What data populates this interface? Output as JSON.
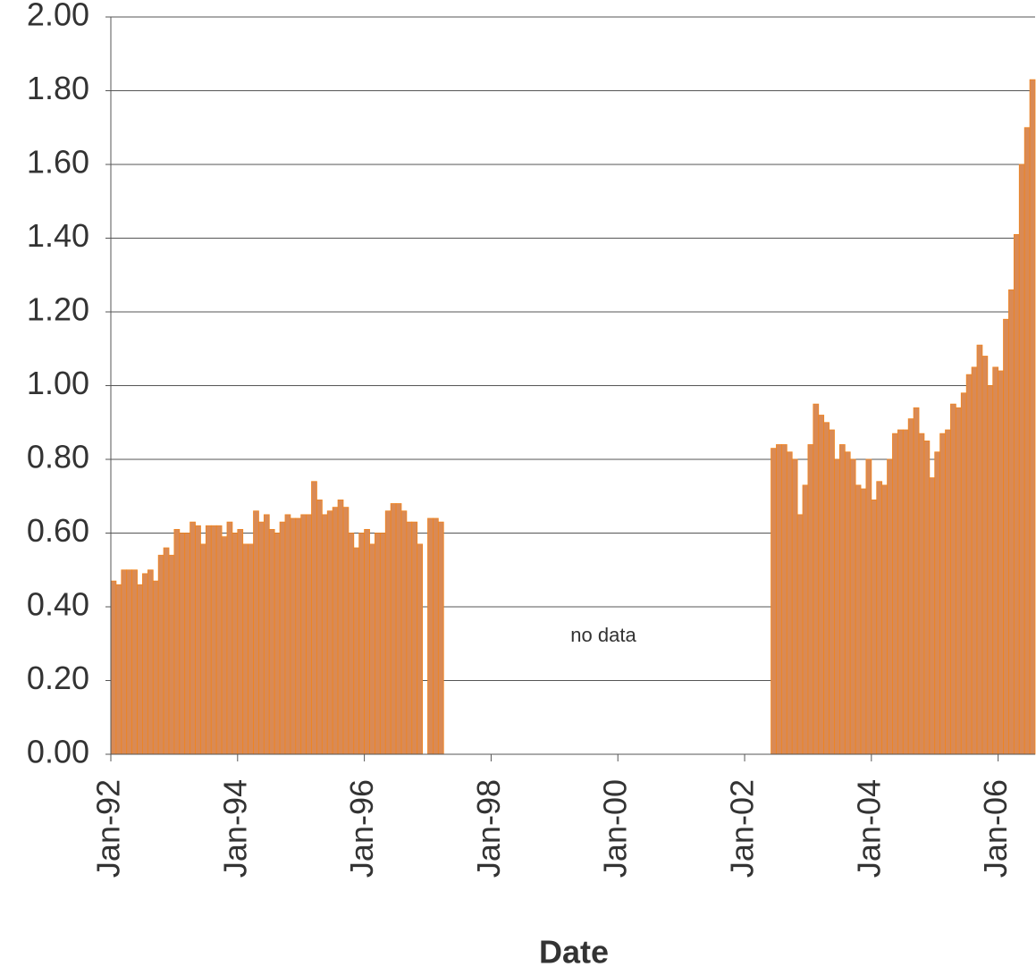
{
  "chart_data": {
    "type": "bar",
    "x_label": "Date",
    "annotation": "no data",
    "color": "#d98a55",
    "edge_color": "#f0841e",
    "grid": true,
    "categories": [
      "Jan-92",
      null,
      null,
      null,
      null,
      null,
      null,
      null,
      null,
      null,
      null,
      null,
      null,
      null,
      null,
      null,
      null,
      null,
      null,
      null,
      null,
      null,
      null,
      null,
      "Jan-94",
      null,
      null,
      null,
      null,
      null,
      null,
      null,
      null,
      null,
      null,
      null,
      null,
      null,
      null,
      null,
      null,
      null,
      null,
      null,
      null,
      null,
      null,
      null,
      "Jan-96",
      null,
      null,
      null,
      null,
      null,
      null,
      null,
      null,
      null,
      null,
      null,
      null,
      null,
      null,
      null,
      null,
      null,
      null,
      null,
      null,
      null,
      null,
      null,
      "Jan-98",
      null,
      null,
      null,
      null,
      null,
      null,
      null,
      null,
      null,
      null,
      null,
      null,
      null,
      null,
      null,
      null,
      null,
      null,
      null,
      null,
      null,
      null,
      null,
      "Jan-00",
      null,
      null,
      null,
      null,
      null,
      null,
      null,
      null,
      null,
      null,
      null,
      null,
      null,
      null,
      null,
      null,
      null,
      null,
      null,
      null,
      null,
      null,
      null,
      "Jan-02",
      null,
      null,
      null,
      null,
      null,
      null,
      null,
      null,
      null,
      null,
      null,
      null,
      null,
      null,
      null,
      null,
      null,
      null,
      null,
      null,
      null,
      null,
      null,
      "Jan-04",
      null,
      null,
      null,
      null,
      null,
      null,
      null,
      null,
      null,
      null,
      null,
      null,
      null,
      null,
      null,
      null,
      null,
      null,
      null,
      null,
      null,
      null,
      null,
      "Jan-06",
      null,
      null,
      null,
      null,
      null,
      null
    ],
    "values": [
      0.47,
      0.46,
      0.5,
      0.5,
      0.5,
      0.46,
      0.49,
      0.5,
      0.47,
      0.54,
      0.56,
      0.54,
      0.61,
      0.6,
      0.6,
      0.63,
      0.62,
      0.57,
      0.62,
      0.62,
      0.62,
      0.59,
      0.63,
      0.6,
      0.61,
      0.57,
      0.57,
      0.66,
      0.63,
      0.65,
      0.61,
      0.6,
      0.63,
      0.65,
      0.64,
      0.64,
      0.65,
      0.65,
      0.74,
      0.69,
      0.65,
      0.66,
      0.67,
      0.69,
      0.67,
      0.6,
      0.56,
      0.6,
      0.61,
      0.57,
      0.6,
      0.6,
      0.66,
      0.68,
      0.68,
      0.66,
      0.63,
      0.63,
      0.57,
      null,
      0.64,
      0.64,
      0.63,
      null,
      null,
      null,
      null,
      null,
      null,
      null,
      null,
      null,
      null,
      null,
      null,
      null,
      null,
      null,
      null,
      null,
      null,
      null,
      null,
      null,
      null,
      null,
      null,
      null,
      null,
      null,
      null,
      null,
      null,
      null,
      null,
      null,
      null,
      null,
      null,
      null,
      null,
      null,
      null,
      null,
      null,
      null,
      null,
      null,
      null,
      null,
      null,
      null,
      null,
      null,
      null,
      null,
      null,
      null,
      null,
      null,
      null,
      null,
      null,
      null,
      null,
      0.83,
      0.84,
      0.84,
      0.82,
      0.8,
      0.65,
      0.73,
      0.84,
      0.95,
      0.92,
      0.9,
      0.88,
      0.8,
      0.84,
      0.82,
      0.8,
      0.73,
      0.72,
      0.8,
      0.69,
      0.74,
      0.73,
      0.8,
      0.87,
      0.88,
      0.88,
      0.91,
      0.94,
      0.87,
      0.85,
      0.75,
      0.82,
      0.87,
      0.88,
      0.95,
      0.94,
      0.98,
      1.03,
      1.05,
      1.11,
      1.08,
      1.0,
      1.05,
      1.04,
      1.18,
      1.26,
      1.41,
      1.6,
      1.7,
      1.83
    ],
    "ylim": [
      0,
      2
    ],
    "yticks": [
      {
        "value": 0,
        "label": "0.00"
      },
      {
        "value": 0.2,
        "label": "0.20"
      },
      {
        "value": 0.4,
        "label": "0.40"
      },
      {
        "value": 0.6,
        "label": "0.60"
      },
      {
        "value": 0.8,
        "label": "0.80"
      },
      {
        "value": 1,
        "label": "1.00"
      },
      {
        "value": 1.2,
        "label": "1.20"
      },
      {
        "value": 1.4,
        "label": "1.40"
      },
      {
        "value": 1.6,
        "label": "1.60"
      },
      {
        "value": 1.8,
        "label": "1.80"
      },
      {
        "value": 2,
        "label": "2.00"
      }
    ]
  }
}
